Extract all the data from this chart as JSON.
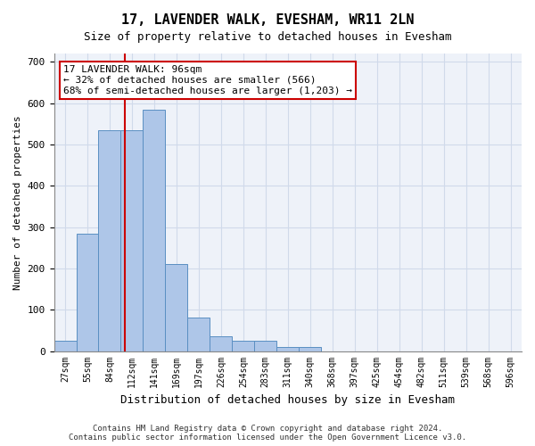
{
  "title": "17, LAVENDER WALK, EVESHAM, WR11 2LN",
  "subtitle": "Size of property relative to detached houses in Evesham",
  "xlabel": "Distribution of detached houses by size in Evesham",
  "ylabel": "Number of detached properties",
  "bin_labels": [
    "27sqm",
    "55sqm",
    "84sqm",
    "112sqm",
    "141sqm",
    "169sqm",
    "197sqm",
    "226sqm",
    "254sqm",
    "283sqm",
    "311sqm",
    "340sqm",
    "368sqm",
    "397sqm",
    "425sqm",
    "454sqm",
    "482sqm",
    "511sqm",
    "539sqm",
    "568sqm",
    "596sqm"
  ],
  "bar_values": [
    25,
    285,
    535,
    535,
    585,
    210,
    80,
    35,
    25,
    25,
    10,
    10,
    0,
    0,
    0,
    0,
    0,
    0,
    0,
    0,
    0
  ],
  "bar_color": "#aec6e8",
  "bar_edge_color": "#5a8fc2",
  "grid_color": "#d0daea",
  "bg_color": "#eef2f9",
  "annotation_text": "17 LAVENDER WALK: 96sqm\n← 32% of detached houses are smaller (566)\n68% of semi-detached houses are larger (1,203) →",
  "annotation_box_color": "#ffffff",
  "annotation_border_color": "#cc0000",
  "vline_color": "#cc0000",
  "vline_x": 2.69,
  "ylim": [
    0,
    720
  ],
  "yticks": [
    0,
    100,
    200,
    300,
    400,
    500,
    600,
    700
  ],
  "footer1": "Contains HM Land Registry data © Crown copyright and database right 2024.",
  "footer2": "Contains public sector information licensed under the Open Government Licence v3.0."
}
